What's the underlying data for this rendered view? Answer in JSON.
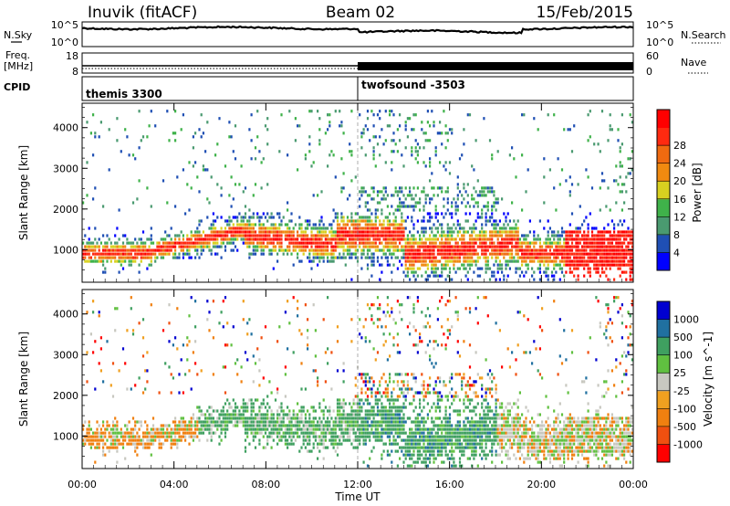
{
  "header": {
    "station": "Inuvik (fitACF)",
    "beam": "Beam 02",
    "date": "15/Feb/2015"
  },
  "nsky_panel": {
    "left_label": "N.Sky",
    "right_label": "N.Search",
    "ticks_left": [
      "10^5",
      "10^0"
    ],
    "ticks_right": [
      "10^5",
      "10^0"
    ]
  },
  "freq_panel": {
    "left_label_line1": "Freq.",
    "left_label_line2": "[MHz]",
    "right_label": "Nave",
    "ticks_left": [
      "18",
      "8"
    ],
    "ticks_right": [
      "60",
      "0"
    ]
  },
  "cpid_panel": {
    "label": "CPID",
    "segments": [
      {
        "name": "themis 3300",
        "start_hour": 0,
        "end_hour": 12
      },
      {
        "name": "twofsound -3503",
        "start_hour": 12,
        "end_hour": 24
      }
    ]
  },
  "colors": {
    "power": [
      "#0000ff",
      "#1f4fb4",
      "#4a9a70",
      "#3fb24a",
      "#d8d020",
      "#f08a10",
      "#f06a10",
      "#ff2a10",
      "#ff0000"
    ],
    "velocity": [
      "#ff0000",
      "#f05010",
      "#f08010",
      "#f0a020",
      "#c8c8c0",
      "#60c040",
      "#3fa060",
      "#2070a0",
      "#0000d0"
    ]
  },
  "chart_data": [
    {
      "type": "heatmap",
      "id": "power",
      "ylabel": "Slant Range [km]",
      "y_ticks": [
        "1000",
        "2000",
        "3000",
        "4000"
      ],
      "ylim": [
        200,
        4600
      ],
      "xlim": [
        0,
        24
      ],
      "colorbar_label": "Power [dB]",
      "colorbar_ticks": [
        "4",
        "8",
        "12",
        "16",
        "20",
        "24",
        "28"
      ],
      "colorbar_range": [
        0,
        32
      ]
    },
    {
      "type": "heatmap",
      "id": "velocity",
      "ylabel": "Slant Range [km]",
      "y_ticks": [
        "1000",
        "2000",
        "3000",
        "4000"
      ],
      "ylim": [
        200,
        4600
      ],
      "xlim": [
        0,
        24
      ],
      "colorbar_label": "Velocity [m s^-1]",
      "colorbar_ticks": [
        "-1000",
        "-500",
        "-100",
        "-25",
        "25",
        "100",
        "500",
        "1000"
      ]
    }
  ],
  "xaxis": {
    "label": "Time UT",
    "ticks": [
      "00:00",
      "04:00",
      "08:00",
      "12:00",
      "16:00",
      "20:00",
      "00:00"
    ]
  }
}
